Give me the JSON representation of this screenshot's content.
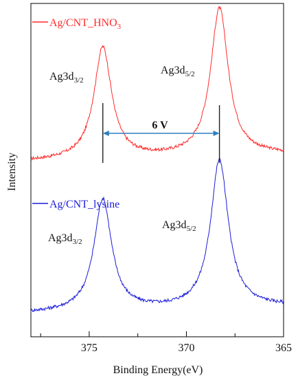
{
  "chart_data": {
    "type": "line",
    "title": "",
    "xlabel": "Binding Energy(eV)",
    "ylabel": "Intensity",
    "xlim": [
      378,
      365
    ],
    "x_reversed": true,
    "xticks": [
      {
        "value": 375,
        "label": "375"
      },
      {
        "value": 370,
        "label": "370"
      },
      {
        "value": 365,
        "label": "365"
      }
    ],
    "y_axis_ticks": false,
    "grid": false,
    "legend": "top-left, inline beside each curve",
    "series": [
      {
        "name": "Ag/CNT_HNO3",
        "legend_main": "Ag/CNT_HNO",
        "legend_sub": "3",
        "color": "#ff2a2a",
        "baseline": 0.02,
        "peaks": [
          {
            "x": 374.3,
            "height": 0.62,
            "label_main": "Ag3d",
            "label_sub": "3/2"
          },
          {
            "x": 368.3,
            "height": 0.82,
            "label_main": "Ag3d",
            "label_sub": "5/2"
          }
        ]
      },
      {
        "name": "Ag/CNT_lysine",
        "legend_main": "Ag/CNT_lysine",
        "legend_sub": "",
        "color": "#1a1ad8",
        "baseline": 0.02,
        "peaks": [
          {
            "x": 374.3,
            "height": 0.62,
            "label_main": "Ag3d",
            "label_sub": "3/2"
          },
          {
            "x": 368.3,
            "height": 0.82,
            "label_main": "Ag3d",
            "label_sub": "5/2"
          }
        ]
      }
    ],
    "annotation": {
      "text": "6 V",
      "from_x": 374.3,
      "to_x": 368.3,
      "arrow_color": "#2f7fc0"
    }
  }
}
